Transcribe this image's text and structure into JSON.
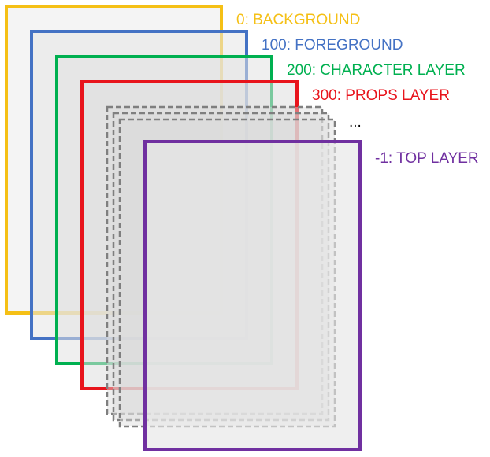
{
  "layers": [
    {
      "label": "0: BACKGROUND",
      "color": "#F5C016"
    },
    {
      "label": "100: FOREGROUND",
      "color": "#4472C4"
    },
    {
      "label": "200: CHARACTER LAYER",
      "color": "#00B050"
    },
    {
      "label": "300: PROPS LAYER",
      "color": "#E8141C"
    },
    {
      "label": "-1: TOP LAYER",
      "color": "#7030A0"
    }
  ],
  "ellipsis": "...",
  "intermediate_layer_color": "#7F7F7F",
  "panel_fill": "#EBEBEB"
}
